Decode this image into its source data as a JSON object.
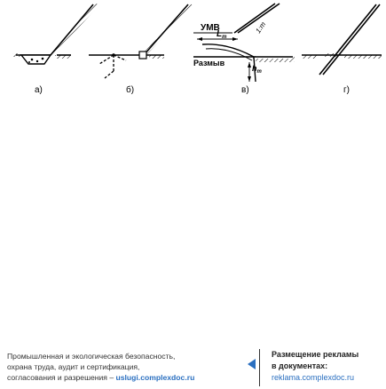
{
  "figure": {
    "panel_labels": [
      "а)",
      "б)",
      "в)",
      "г)"
    ],
    "labels": {
      "umv": "УМВ",
      "erosion": "Размыв",
      "length": "L",
      "length_sub": "т",
      "depth": "h",
      "depth_sub": "т",
      "slope": "1:m"
    }
  },
  "footer": {
    "left_line1": "Промышленная и экологическая безопасность,",
    "left_line2": "охрана труда, аудит и сертификация,",
    "left_line3": "согласования и разрешения – ",
    "left_link": "uslugi.complexdoc.ru",
    "right_line1": "Размещение рекламы",
    "right_line2": "в документах:",
    "right_link": "reklama.complexdoc.ru"
  }
}
